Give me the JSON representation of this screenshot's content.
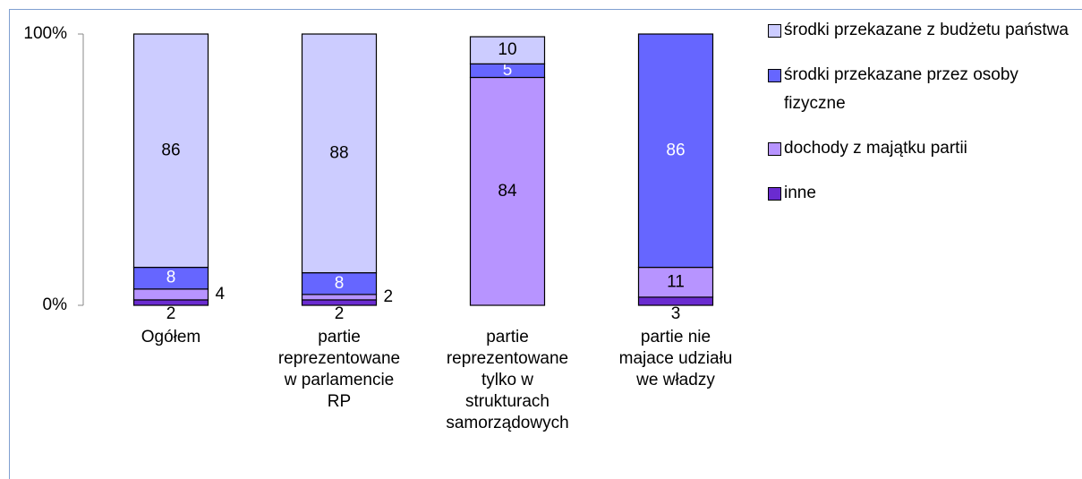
{
  "chart_data": {
    "type": "stacked_bar",
    "categories": [
      "Ogółem",
      "partie\nreprezentowane\nw parlamencie\nRP",
      "partie\nreprezentowane\ntylko  w\nstrukturach\nsamorządowych",
      "partie nie\nmajace udziału\nwe władzy"
    ],
    "series": [
      {
        "name": "inne",
        "color": "#6a2bd0",
        "values": [
          2,
          2,
          0,
          3
        ]
      },
      {
        "name": "dochody z majątku partii",
        "color": "#b794ff",
        "values": [
          4,
          2,
          84,
          11
        ]
      },
      {
        "name": "środki przekazane przez osoby fizyczne",
        "color": "#6666ff",
        "values": [
          8,
          8,
          5,
          86
        ]
      },
      {
        "name": "środki przekazane z budżetu państwa",
        "color": "#ccccff",
        "values": [
          86,
          88,
          10,
          0
        ]
      }
    ],
    "ylim": [
      0,
      100
    ],
    "yticks": [
      {
        "value": 0,
        "label": "0%"
      },
      {
        "value": 100,
        "label": "100%"
      }
    ]
  }
}
